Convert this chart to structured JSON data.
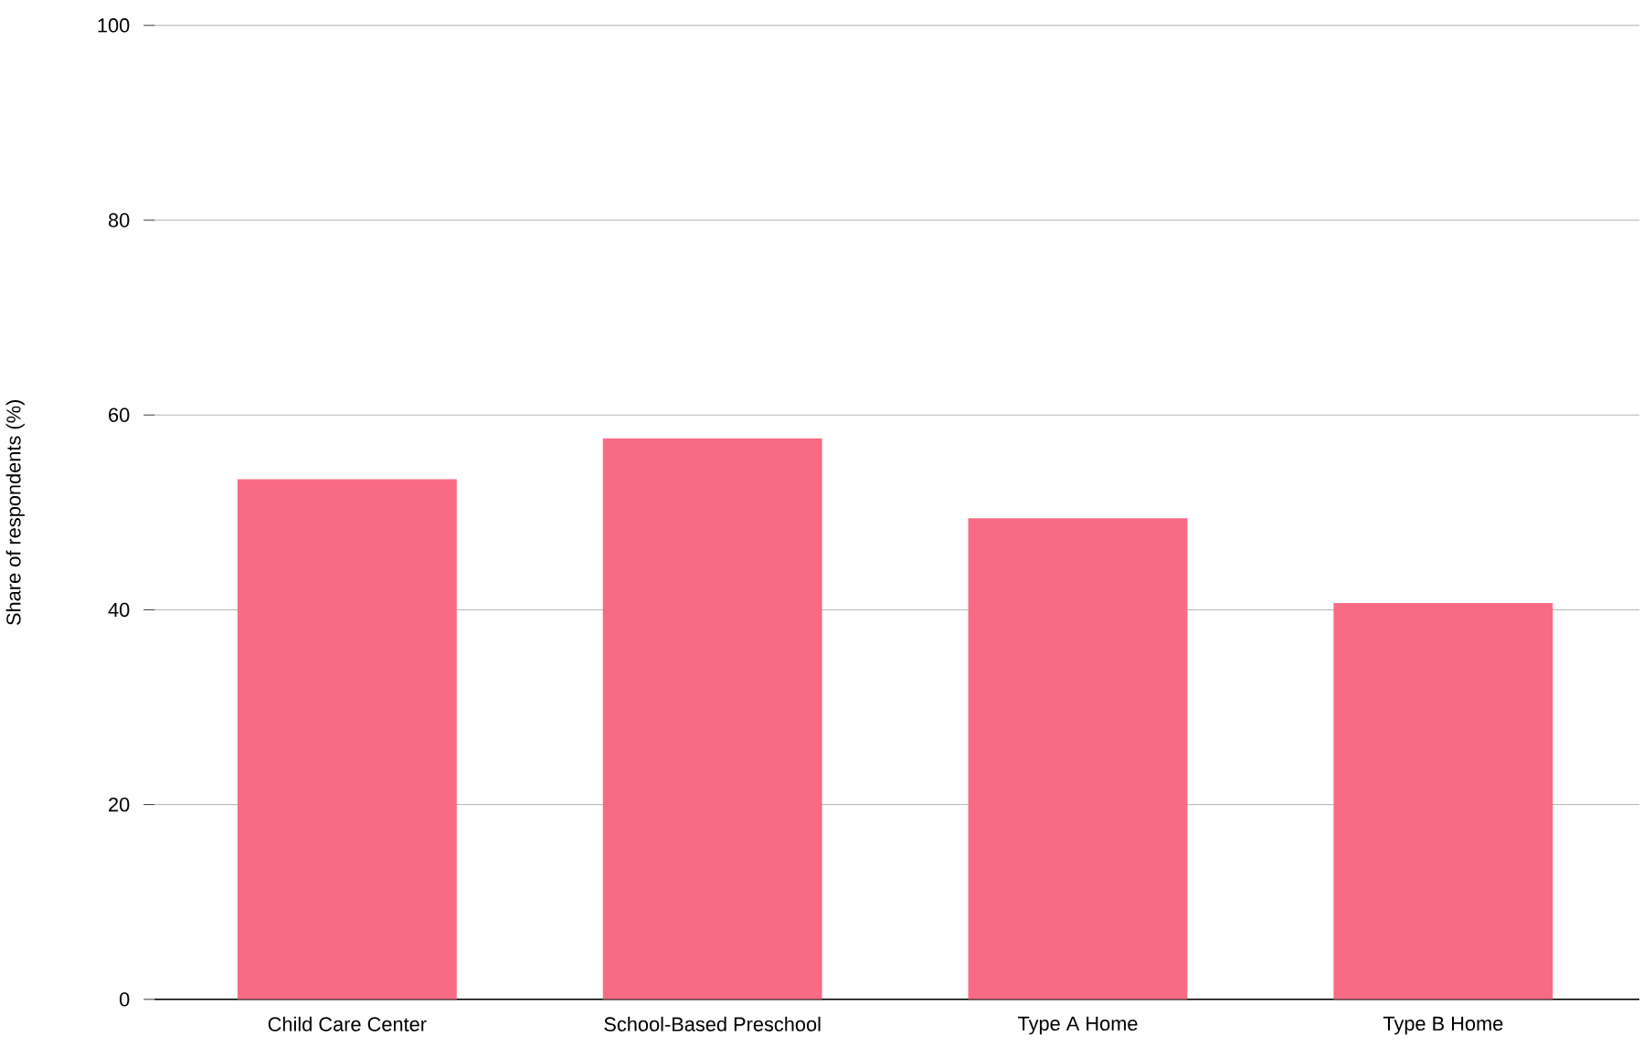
{
  "chart_data": {
    "type": "bar",
    "ylabel": "Share of respondents (%)",
    "categories": [
      "Child Care Center",
      "School-Based Preschool",
      "Type A Home",
      "Type B Home"
    ],
    "values": [
      53.4,
      57.6,
      49.4,
      40.7
    ],
    "color": "#f96b85",
    "ylim": [
      0,
      100
    ],
    "yticks": [
      0,
      20,
      40,
      60,
      80,
      100
    ],
    "grid": "y"
  }
}
